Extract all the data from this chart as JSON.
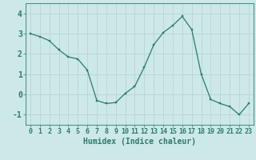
{
  "x": [
    0,
    1,
    2,
    3,
    4,
    5,
    6,
    7,
    8,
    9,
    10,
    11,
    12,
    13,
    14,
    15,
    16,
    17,
    18,
    19,
    20,
    21,
    22,
    23
  ],
  "y": [
    3.0,
    2.85,
    2.65,
    2.2,
    1.85,
    1.75,
    1.2,
    -0.3,
    -0.45,
    -0.4,
    0.05,
    0.4,
    1.35,
    2.45,
    3.05,
    3.4,
    3.85,
    3.2,
    1.0,
    -0.25,
    -0.45,
    -0.6,
    -1.0,
    -0.45
  ],
  "line_color": "#2d7a6a",
  "marker_color": "#2d7a6a",
  "bg_color": "#cce8e8",
  "grid_color": "#b8d4d4",
  "xlabel": "Humidex (Indice chaleur)",
  "xlim": [
    -0.5,
    23.5
  ],
  "ylim": [
    -1.5,
    4.5
  ],
  "xtick_labels": [
    "0",
    "1",
    "2",
    "3",
    "4",
    "5",
    "6",
    "7",
    "8",
    "9",
    "10",
    "11",
    "12",
    "13",
    "14",
    "15",
    "16",
    "17",
    "18",
    "19",
    "20",
    "21",
    "22",
    "23"
  ],
  "yticks": [
    -1,
    0,
    1,
    2,
    3,
    4
  ],
  "axis_color": "#2d7a6a",
  "tick_color": "#2d7a6a",
  "label_color": "#2d7a6a",
  "font_size_label": 7,
  "font_size_tick": 6
}
